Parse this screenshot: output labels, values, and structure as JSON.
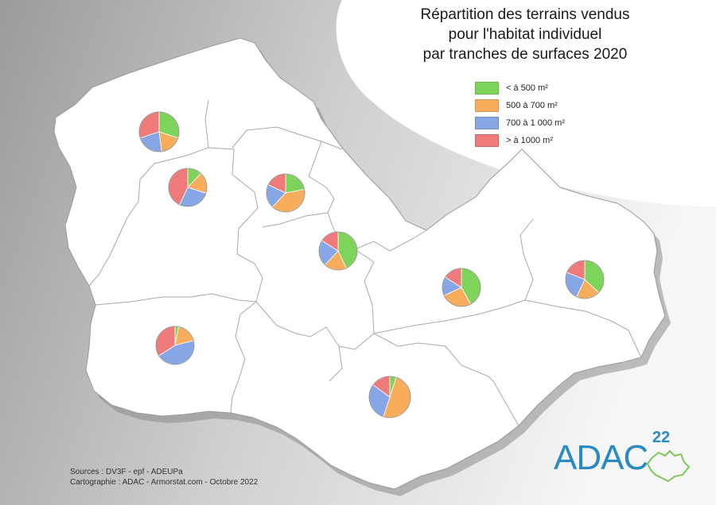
{
  "title": {
    "line1": "Répartition des terrains vendus",
    "line2": "pour l'habitat individuel",
    "line3": "par tranches de surfaces 2020"
  },
  "legend": [
    {
      "label": "< à 500 m²",
      "color": "#7ed35a"
    },
    {
      "label": "500 à 700 m²",
      "color": "#f8ad5d"
    },
    {
      "label": "700 à 1 000 m²",
      "color": "#86a6e6"
    },
    {
      "label": "> à 1000 m²",
      "color": "#ee7a7a"
    }
  ],
  "sources": {
    "line1": "Sources : DV3F - epf - ADEUPa",
    "line2": "Cartographie : ADAC - Armorstat.com - Octobre 2022"
  },
  "logo": {
    "text": "ADAC",
    "number": "22",
    "color": "#2a8ac2"
  },
  "pies": [
    {
      "id": "pie-1",
      "shares": [
        30,
        18,
        22,
        30
      ]
    },
    {
      "id": "pie-2",
      "shares": [
        12,
        18,
        27,
        43
      ]
    },
    {
      "id": "pie-3",
      "shares": [
        22,
        40,
        20,
        18
      ]
    },
    {
      "id": "pie-4",
      "shares": [
        43,
        19,
        22,
        16
      ]
    },
    {
      "id": "pie-5",
      "shares": [
        42,
        26,
        16,
        16
      ]
    },
    {
      "id": "pie-6",
      "shares": [
        37,
        20,
        24,
        19
      ]
    },
    {
      "id": "pie-7",
      "shares": [
        3,
        18,
        45,
        34
      ]
    },
    {
      "id": "pie-8",
      "shares": [
        5,
        50,
        30,
        15
      ]
    }
  ]
}
